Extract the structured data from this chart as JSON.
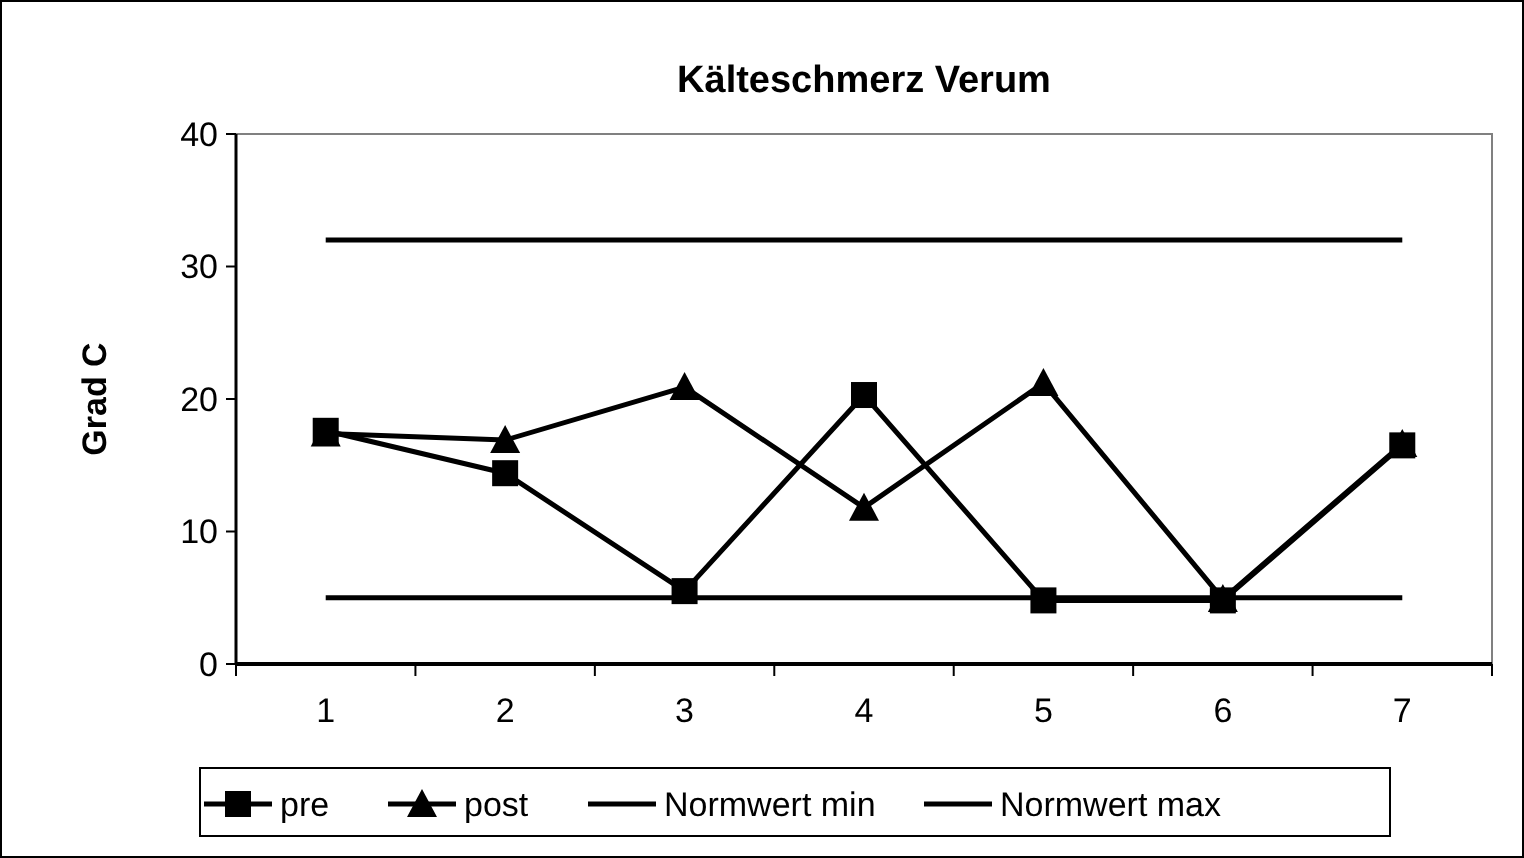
{
  "chart_data": {
    "type": "line",
    "title": "Kälteschmerz Verum",
    "ylabel": "Grad C",
    "categories": [
      "1",
      "2",
      "3",
      "4",
      "5",
      "6",
      "7"
    ],
    "ylim": [
      0,
      40
    ],
    "yticks": [
      0,
      10,
      20,
      30,
      40
    ],
    "grid": false,
    "legend": "bottom",
    "line_style": "solid",
    "series": [
      {
        "name": "pre",
        "color": "#000000",
        "marker": "square",
        "values": [
          17.6,
          14.4,
          5.5,
          20.3,
          4.8,
          4.8,
          16.5
        ]
      },
      {
        "name": "post",
        "color": "#000000",
        "marker": "triangle",
        "values": [
          17.4,
          16.9,
          20.9,
          11.8,
          21.2,
          4.9,
          16.6
        ]
      },
      {
        "name": "Normwert min",
        "color": "#000000",
        "marker": "none",
        "values": [
          5,
          5,
          5,
          5,
          5,
          5,
          5
        ]
      },
      {
        "name": "Normwert max",
        "color": "#000000",
        "marker": "none",
        "values": [
          32,
          32,
          32,
          32,
          32,
          32,
          32
        ]
      }
    ]
  }
}
